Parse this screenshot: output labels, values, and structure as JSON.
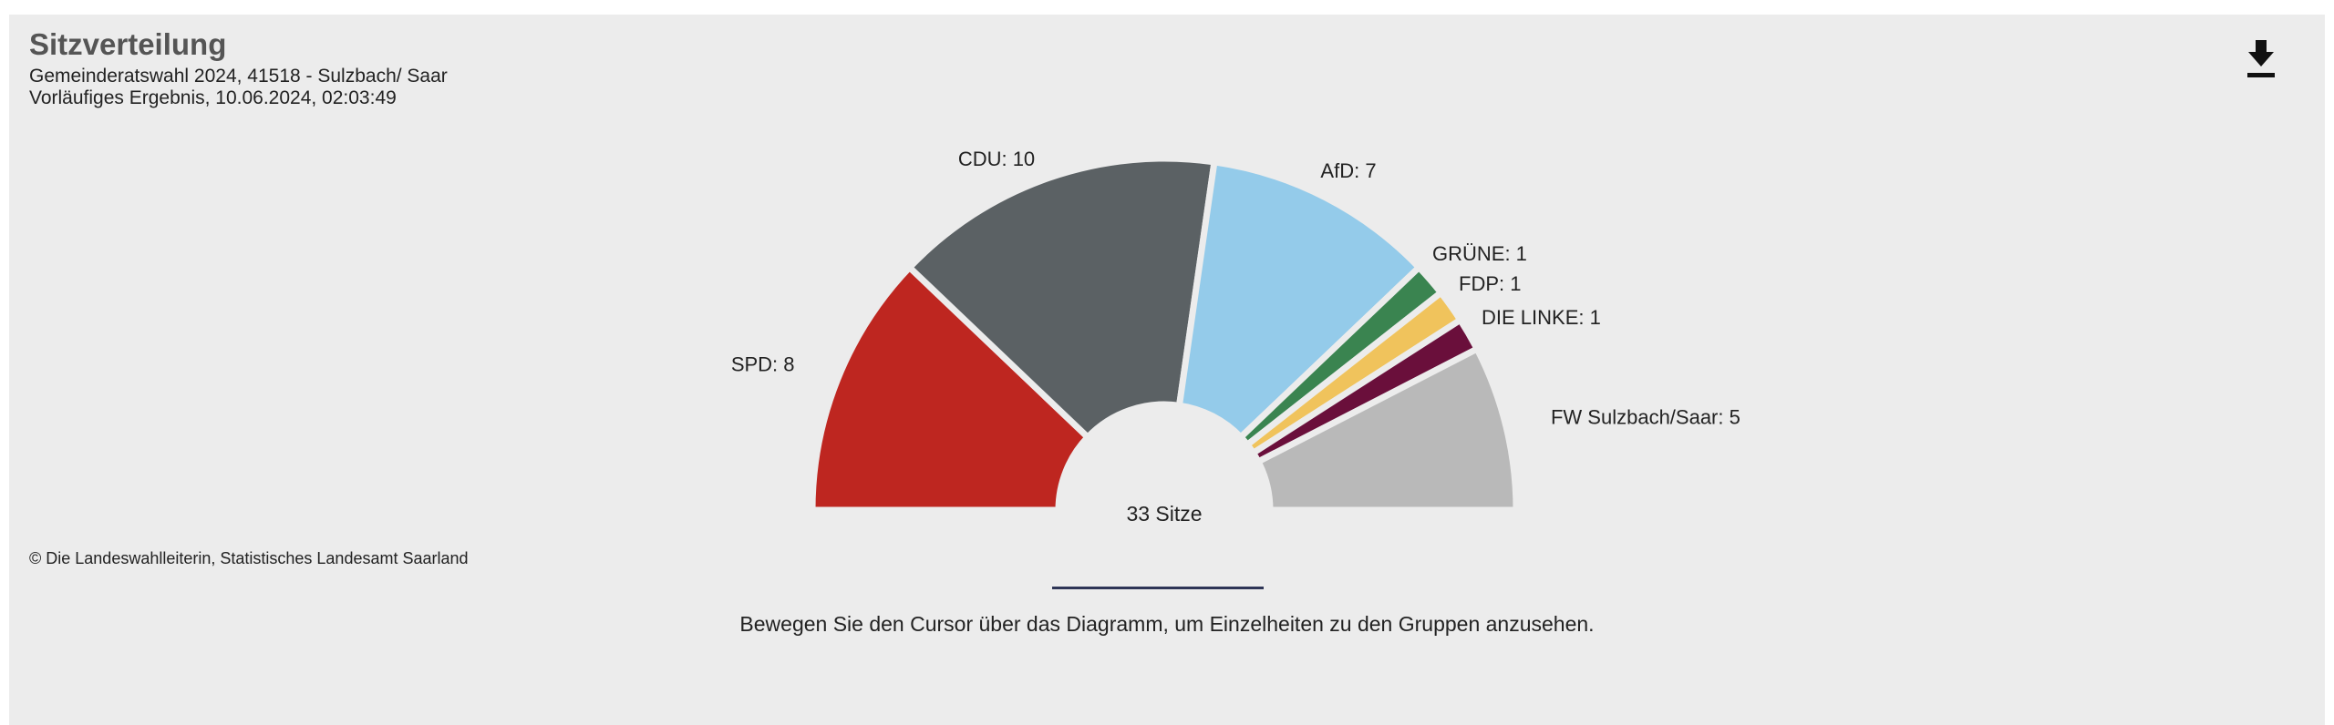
{
  "header": {
    "title": "Sitzverteilung",
    "subtitle_line1": "Gemeinderatswahl 2024, 41518 - Sulzbach/ Saar",
    "subtitle_line2": "Vorläufiges Ergebnis, 10.06.2024, 02:03:49"
  },
  "toolbar": {
    "download_icon": "download-icon"
  },
  "footer": {
    "copyright": "© Die Landeswahlleiterin, Statistisches Landesamt Saarland",
    "hint": "Bewegen Sie den Cursor über das Diagramm, um Einzelheiten zu den Gruppen anzusehen."
  },
  "chart_data": {
    "type": "pie",
    "variant": "semicircle-parliament",
    "center_label": "33 Sitze",
    "total": 33,
    "categories": [
      "SPD",
      "CDU",
      "AfD",
      "GRÜNE",
      "FDP",
      "DIE LINKE",
      "FW Sulzbach/Saar"
    ],
    "values": [
      8,
      10,
      7,
      1,
      1,
      1,
      5
    ],
    "labels": [
      "SPD: 8",
      "CDU: 10",
      "AfD: 7",
      "GRÜNE: 1",
      "FDP: 1",
      "DIE LINKE: 1",
      "FW Sulzbach/Saar: 5"
    ],
    "colors": [
      "#be2620",
      "#5b6164",
      "#94cbea",
      "#3a8450",
      "#f0c35c",
      "#6a0f3b",
      "#b9b9b9"
    ]
  }
}
